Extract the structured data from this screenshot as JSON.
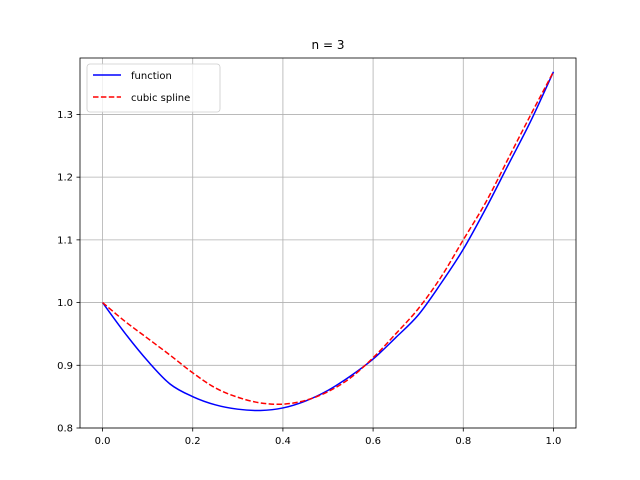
{
  "chart_data": {
    "type": "line",
    "title": "n = 3",
    "xlabel": "",
    "ylabel": "",
    "xlim": [
      -0.05,
      1.05
    ],
    "ylim": [
      0.8,
      1.39
    ],
    "xticks": [
      0.0,
      0.2,
      0.4,
      0.6,
      0.8,
      1.0
    ],
    "xtick_labels": [
      "0.0",
      "0.2",
      "0.4",
      "0.6",
      "0.8",
      "1.0"
    ],
    "yticks": [
      0.8,
      0.9,
      1.0,
      1.1,
      1.2,
      1.3
    ],
    "ytick_labels": [
      "0.8",
      "0.9",
      "1.0",
      "1.1",
      "1.2",
      "1.3"
    ],
    "grid": true,
    "legend_position": "top-left",
    "series": [
      {
        "name": "function",
        "color": "#0000ff",
        "style": "solid",
        "x": [
          0.0,
          0.05,
          0.1,
          0.15,
          0.2,
          0.25,
          0.3,
          0.35,
          0.4,
          0.45,
          0.5,
          0.55,
          0.6,
          0.65,
          0.7,
          0.75,
          0.8,
          0.85,
          0.9,
          0.95,
          1.0
        ],
        "y": [
          1.0,
          0.951,
          0.907,
          0.87,
          0.85,
          0.837,
          0.83,
          0.828,
          0.832,
          0.843,
          0.86,
          0.883,
          0.91,
          0.944,
          0.98,
          1.03,
          1.085,
          1.15,
          1.22,
          1.29,
          1.368
        ]
      },
      {
        "name": "cubic spline",
        "color": "#ff0000",
        "style": "dashed",
        "x": [
          0.0,
          0.05,
          0.1,
          0.15,
          0.2,
          0.25,
          0.3,
          0.35,
          0.4,
          0.45,
          0.5,
          0.55,
          0.6,
          0.65,
          0.7,
          0.75,
          0.8,
          0.85,
          0.9,
          0.95,
          1.0
        ],
        "y": [
          1.0,
          0.97,
          0.943,
          0.916,
          0.888,
          0.864,
          0.849,
          0.84,
          0.838,
          0.844,
          0.858,
          0.88,
          0.912,
          0.95,
          0.99,
          1.04,
          1.1,
          1.16,
          1.23,
          1.3,
          1.368
        ]
      }
    ]
  }
}
